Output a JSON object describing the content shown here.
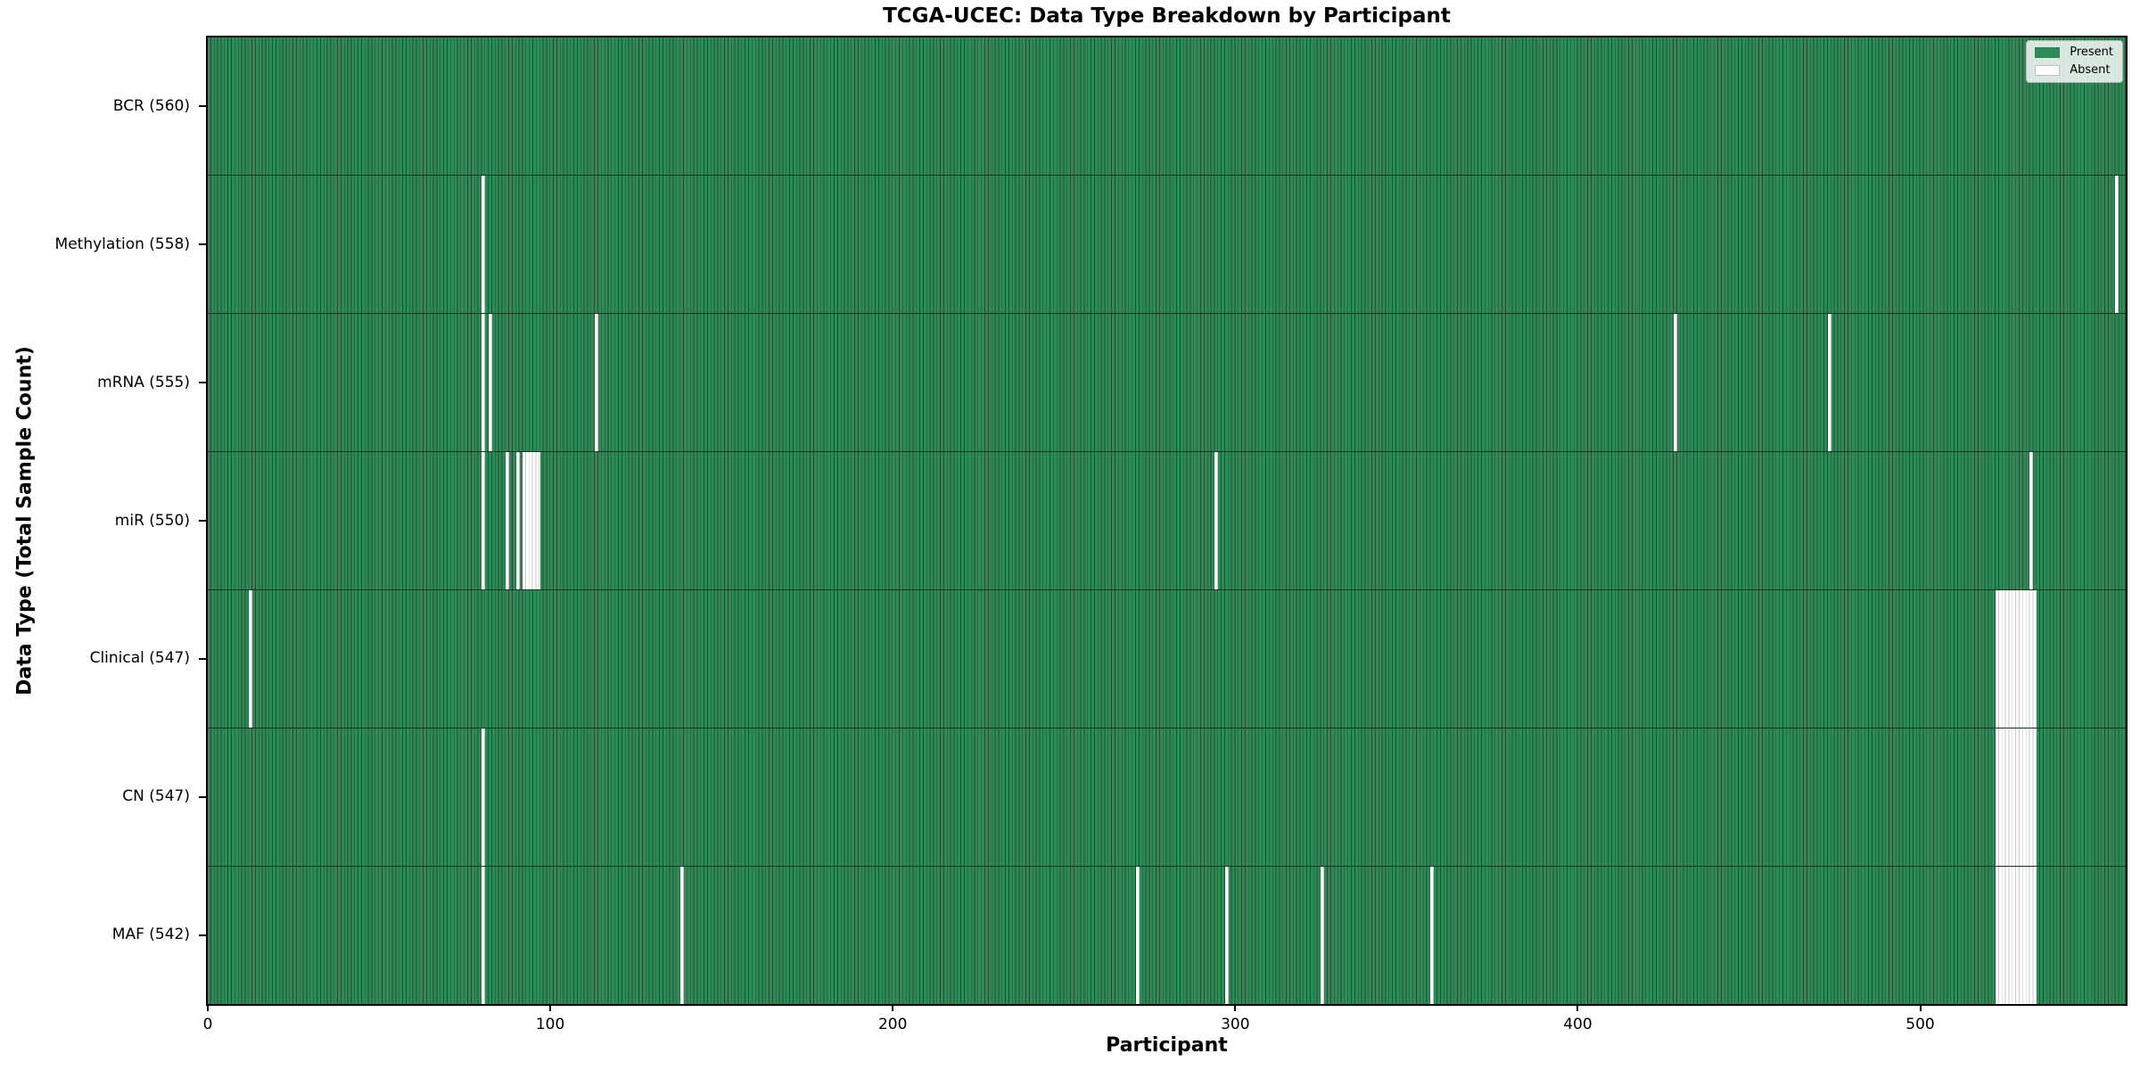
{
  "chart_data": {
    "type": "heatmap",
    "title": "TCGA-UCEC: Data Type Breakdown by Participant",
    "xlabel": "Participant",
    "ylabel": "Data Type (Total Sample Count)",
    "n_participants": 560,
    "x_range": [
      0,
      560
    ],
    "x_ticks": [
      0,
      100,
      200,
      300,
      400,
      500
    ],
    "grid": false,
    "legend_position": "upper right",
    "colors": {
      "present": "#2E8B57",
      "absent": "#FFFFFF",
      "cell_edge": "#1E4F33",
      "absent_edge": "#C8C8C8"
    },
    "legend": {
      "items": [
        {
          "label": "Present",
          "color": "#2E8B57"
        },
        {
          "label": "Absent",
          "color": "#FFFFFF"
        }
      ]
    },
    "rows": [
      {
        "name": "BCR",
        "label": "BCR (560)",
        "present_count": 560,
        "absent_participants": []
      },
      {
        "name": "Methylation",
        "label": "Methylation (558)",
        "present_count": 558,
        "absent_participants": [
          80,
          557
        ]
      },
      {
        "name": "mRNA",
        "label": "mRNA (555)",
        "present_count": 555,
        "absent_participants": [
          80,
          82,
          113,
          428,
          473
        ]
      },
      {
        "name": "miR",
        "label": "miR (550)",
        "present_count": 550,
        "absent_participants": [
          80,
          87,
          90,
          92,
          93,
          94,
          95,
          96,
          294,
          532
        ]
      },
      {
        "name": "Clinical",
        "label": "Clinical (547)",
        "present_count": 547,
        "absent_participants": [
          12,
          522,
          523,
          524,
          525,
          526,
          527,
          528,
          529,
          530,
          531,
          532,
          533
        ]
      },
      {
        "name": "CN",
        "label": "CN (547)",
        "present_count": 547,
        "absent_participants": [
          80,
          522,
          523,
          524,
          525,
          526,
          527,
          528,
          529,
          530,
          531,
          532,
          533
        ]
      },
      {
        "name": "MAF",
        "label": "MAF (542)",
        "present_count": 542,
        "absent_participants": [
          80,
          138,
          271,
          297,
          325,
          357,
          522,
          523,
          524,
          525,
          526,
          527,
          528,
          529,
          530,
          531,
          532,
          533
        ]
      }
    ]
  }
}
